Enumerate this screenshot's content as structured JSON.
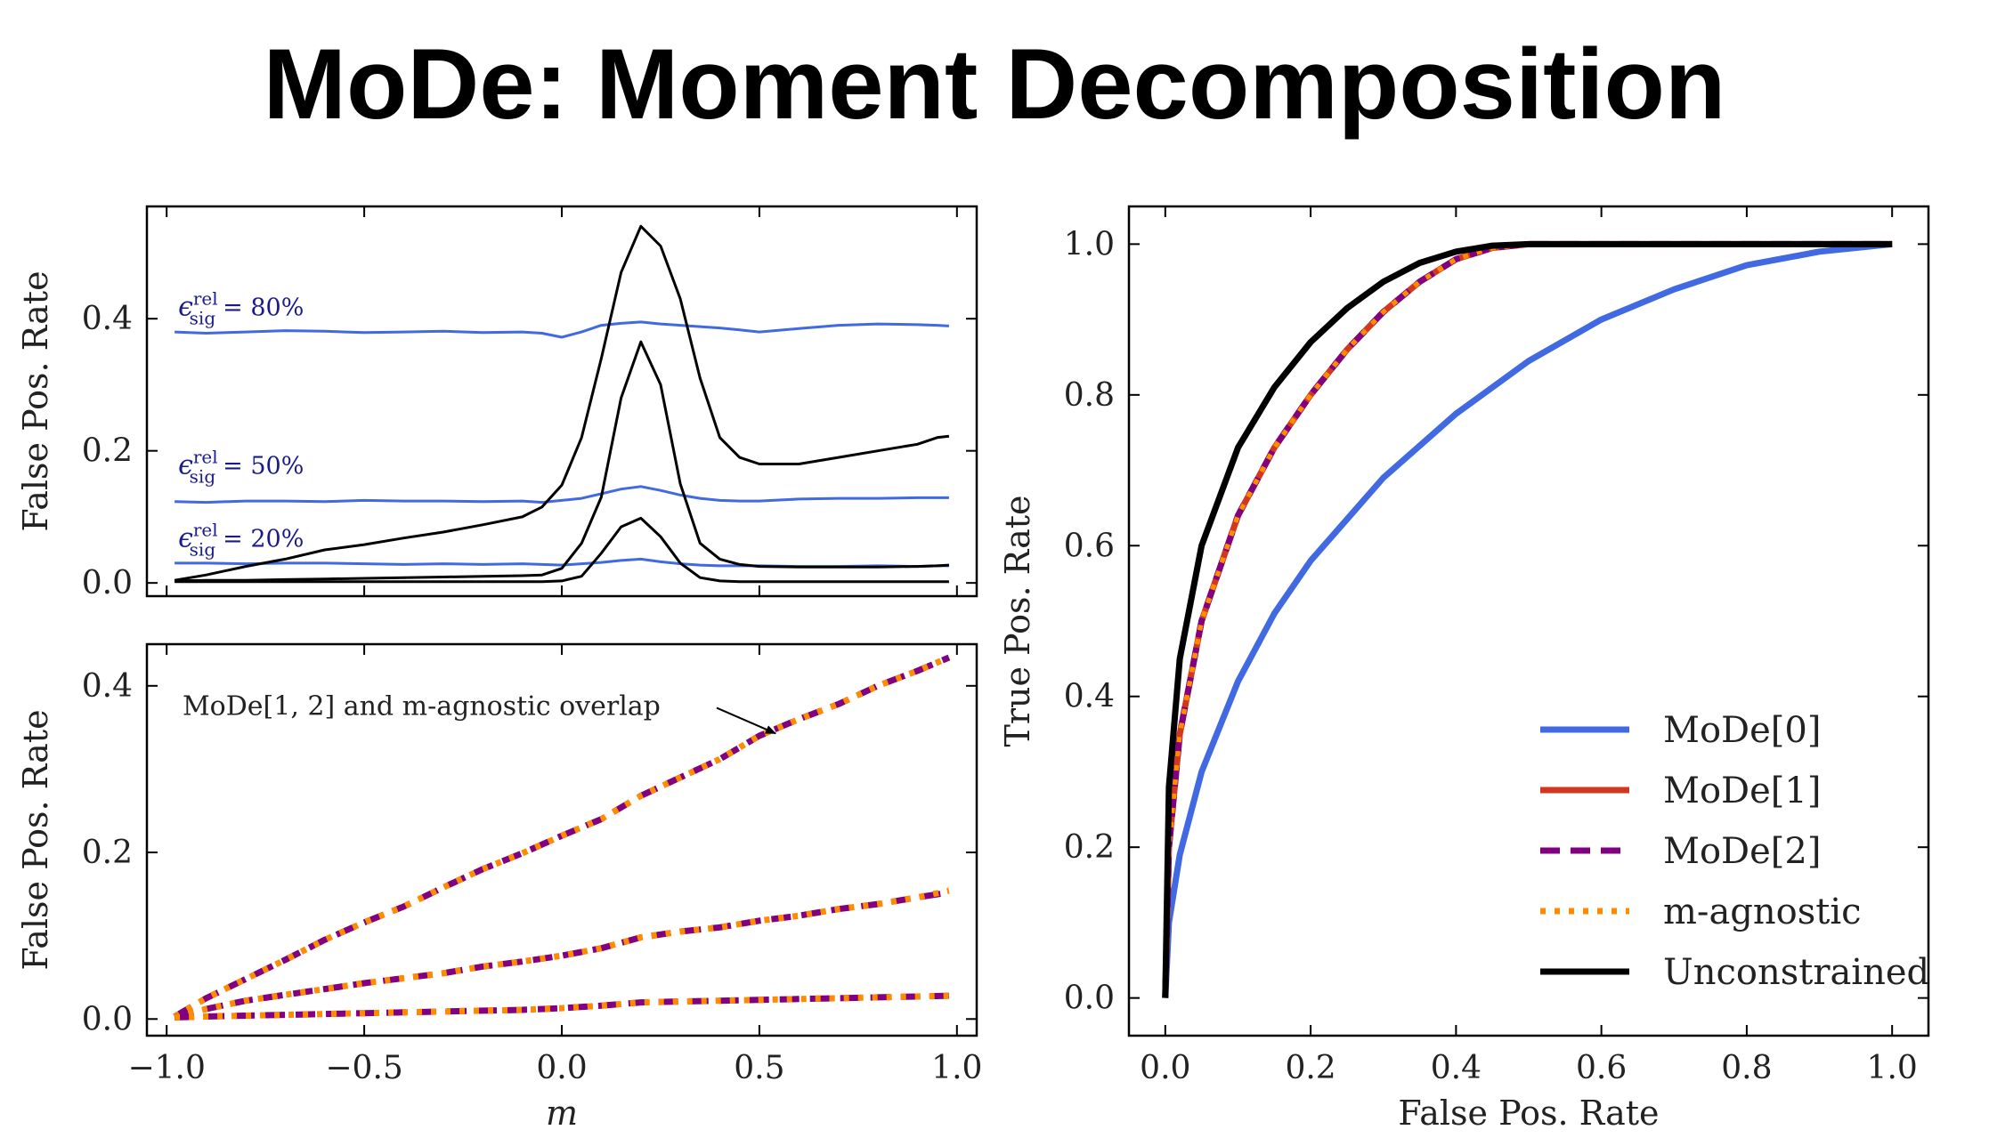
{
  "title": "MoDe: Moment Decomposition",
  "chart_data": [
    {
      "type": "line",
      "ylabel": "False Pos. Rate",
      "xlim": [
        -1.05,
        1.05
      ],
      "ylim": [
        -0.02,
        0.57
      ],
      "xticks": [
        -1.0,
        -0.5,
        0.0,
        0.5,
        1.0
      ],
      "yticks": [
        0.0,
        0.2,
        0.4
      ],
      "yticklabels": [
        "0.0",
        "0.2",
        "0.4"
      ],
      "annotations": [
        {
          "text": "ϵ",
          "sub": "sig",
          "sup": "rel",
          "eq": "= 80%",
          "x": -0.98,
          "y": 0.405
        },
        {
          "text": "ϵ",
          "sub": "sig",
          "sup": "rel",
          "eq": "= 50%",
          "x": -0.98,
          "y": 0.165
        },
        {
          "text": "ϵ",
          "sub": "sig",
          "sup": "rel",
          "eq": "= 20%",
          "x": -0.98,
          "y": 0.055
        }
      ],
      "x": [
        -0.98,
        -0.9,
        -0.8,
        -0.7,
        -0.6,
        -0.5,
        -0.4,
        -0.3,
        -0.2,
        -0.1,
        -0.05,
        0.0,
        0.05,
        0.1,
        0.15,
        0.2,
        0.25,
        0.3,
        0.35,
        0.4,
        0.45,
        0.5,
        0.6,
        0.7,
        0.8,
        0.9,
        0.95,
        0.98
      ],
      "series": [
        {
          "color": "#4169e1",
          "values": [
            0.38,
            0.378,
            0.38,
            0.382,
            0.381,
            0.379,
            0.38,
            0.381,
            0.379,
            0.38,
            0.378,
            0.372,
            0.38,
            0.39,
            0.393,
            0.395,
            0.392,
            0.39,
            0.388,
            0.386,
            0.383,
            0.38,
            0.385,
            0.39,
            0.392,
            0.391,
            0.39,
            0.389
          ]
        },
        {
          "color": "#4169e1",
          "values": [
            0.123,
            0.122,
            0.124,
            0.124,
            0.123,
            0.125,
            0.124,
            0.124,
            0.123,
            0.124,
            0.122,
            0.125,
            0.128,
            0.135,
            0.142,
            0.146,
            0.14,
            0.133,
            0.128,
            0.125,
            0.124,
            0.124,
            0.127,
            0.128,
            0.128,
            0.129,
            0.129,
            0.129
          ]
        },
        {
          "color": "#4169e1",
          "values": [
            0.03,
            0.03,
            0.029,
            0.03,
            0.03,
            0.029,
            0.028,
            0.029,
            0.028,
            0.029,
            0.028,
            0.027,
            0.029,
            0.031,
            0.034,
            0.036,
            0.032,
            0.029,
            0.027,
            0.026,
            0.026,
            0.026,
            0.025,
            0.025,
            0.026,
            0.025,
            0.026,
            0.026
          ]
        },
        {
          "color": "#000000",
          "values": [
            0.004,
            0.012,
            0.025,
            0.036,
            0.05,
            0.058,
            0.068,
            0.077,
            0.088,
            0.1,
            0.115,
            0.148,
            0.22,
            0.34,
            0.47,
            0.54,
            0.51,
            0.43,
            0.31,
            0.22,
            0.19,
            0.18,
            0.18,
            0.19,
            0.2,
            0.21,
            0.22,
            0.222
          ]
        },
        {
          "color": "#000000",
          "values": [
            0.003,
            0.004,
            0.004,
            0.005,
            0.006,
            0.007,
            0.008,
            0.009,
            0.01,
            0.011,
            0.012,
            0.022,
            0.06,
            0.13,
            0.28,
            0.365,
            0.3,
            0.15,
            0.06,
            0.036,
            0.028,
            0.025,
            0.024,
            0.024,
            0.024,
            0.025,
            0.026,
            0.027
          ]
        },
        {
          "color": "#000000",
          "values": [
            0.002,
            0.002,
            0.002,
            0.002,
            0.002,
            0.002,
            0.002,
            0.002,
            0.002,
            0.002,
            0.002,
            0.003,
            0.01,
            0.045,
            0.085,
            0.098,
            0.07,
            0.03,
            0.008,
            0.003,
            0.002,
            0.002,
            0.002,
            0.002,
            0.002,
            0.002,
            0.002,
            0.002
          ]
        }
      ]
    },
    {
      "type": "line",
      "xlabel": "m",
      "ylabel": "False Pos. Rate",
      "xlim": [
        -1.05,
        1.05
      ],
      "ylim": [
        -0.02,
        0.45
      ],
      "xticks": [
        -1.0,
        -0.5,
        0.0,
        0.5,
        1.0
      ],
      "xticklabels": [
        "−1.0",
        "−0.5",
        "0.0",
        "0.5",
        "1.0"
      ],
      "yticks": [
        0.0,
        0.2,
        0.4
      ],
      "yticklabels": [
        "0.0",
        "0.2",
        "0.4"
      ],
      "note": "MoDe[1, 2] and m-agnostic overlap",
      "note_point": {
        "x": 0.55,
        "y": 0.345
      },
      "x": [
        -0.98,
        -0.9,
        -0.8,
        -0.7,
        -0.6,
        -0.5,
        -0.4,
        -0.3,
        -0.2,
        -0.1,
        0.0,
        0.1,
        0.2,
        0.3,
        0.4,
        0.5,
        0.6,
        0.7,
        0.8,
        0.9,
        0.98
      ],
      "series": [
        {
          "color": "#800080",
          "dash": "dashed",
          "values": [
            0.003,
            0.025,
            0.048,
            0.071,
            0.095,
            0.116,
            0.135,
            0.158,
            0.18,
            0.199,
            0.22,
            0.24,
            0.268,
            0.29,
            0.312,
            0.34,
            0.36,
            0.378,
            0.4,
            0.418,
            0.434
          ]
        },
        {
          "color": "#ff8c00",
          "dash": "dotted",
          "values": [
            0.003,
            0.025,
            0.048,
            0.071,
            0.095,
            0.116,
            0.135,
            0.158,
            0.18,
            0.199,
            0.22,
            0.24,
            0.268,
            0.29,
            0.312,
            0.34,
            0.36,
            0.378,
            0.4,
            0.418,
            0.434
          ]
        },
        {
          "color": "#800080",
          "dash": "dashed",
          "values": [
            0.002,
            0.012,
            0.022,
            0.029,
            0.036,
            0.043,
            0.049,
            0.055,
            0.063,
            0.069,
            0.076,
            0.085,
            0.098,
            0.105,
            0.11,
            0.118,
            0.124,
            0.132,
            0.138,
            0.146,
            0.152
          ]
        },
        {
          "color": "#ff8c00",
          "dash": "dotted",
          "values": [
            0.002,
            0.012,
            0.022,
            0.029,
            0.036,
            0.043,
            0.049,
            0.055,
            0.063,
            0.069,
            0.076,
            0.085,
            0.098,
            0.105,
            0.11,
            0.118,
            0.124,
            0.132,
            0.138,
            0.146,
            0.154
          ]
        },
        {
          "color": "#800080",
          "dash": "dashed",
          "values": [
            0.002,
            0.003,
            0.004,
            0.005,
            0.006,
            0.007,
            0.008,
            0.009,
            0.01,
            0.011,
            0.013,
            0.016,
            0.02,
            0.021,
            0.022,
            0.023,
            0.024,
            0.025,
            0.026,
            0.027,
            0.028
          ]
        },
        {
          "color": "#ff8c00",
          "dash": "dotted",
          "values": [
            0.002,
            0.003,
            0.004,
            0.005,
            0.006,
            0.007,
            0.008,
            0.009,
            0.01,
            0.011,
            0.013,
            0.016,
            0.02,
            0.021,
            0.022,
            0.023,
            0.024,
            0.025,
            0.026,
            0.027,
            0.028
          ]
        }
      ]
    },
    {
      "type": "line",
      "xlabel": "False Pos. Rate",
      "ylabel": "True Pos. Rate",
      "xlim": [
        -0.05,
        1.05
      ],
      "ylim": [
        -0.05,
        1.05
      ],
      "xticks": [
        0.0,
        0.2,
        0.4,
        0.6,
        0.8,
        1.0
      ],
      "xticklabels": [
        "0.0",
        "0.2",
        "0.4",
        "0.6",
        "0.8",
        "1.0"
      ],
      "yticks": [
        0.0,
        0.2,
        0.4,
        0.6,
        0.8,
        1.0
      ],
      "yticklabels": [
        "0.0",
        "0.2",
        "0.4",
        "0.6",
        "0.8",
        "1.0"
      ],
      "legend_position": "lower-right",
      "series": [
        {
          "name": "MoDe[0]",
          "color": "#4169e1",
          "dash": "solid",
          "x": [
            0,
            0.005,
            0.02,
            0.05,
            0.1,
            0.15,
            0.2,
            0.3,
            0.4,
            0.5,
            0.6,
            0.7,
            0.8,
            0.9,
            1.0
          ],
          "y": [
            0,
            0.1,
            0.19,
            0.3,
            0.42,
            0.51,
            0.58,
            0.69,
            0.775,
            0.845,
            0.9,
            0.94,
            0.972,
            0.99,
            1.0
          ]
        },
        {
          "name": "MoDe[1]",
          "color": "#d2381f",
          "dash": "solid",
          "x": [
            0,
            0.005,
            0.02,
            0.05,
            0.1,
            0.15,
            0.2,
            0.25,
            0.3,
            0.35,
            0.4,
            0.45,
            0.5,
            1.0
          ],
          "y": [
            0,
            0.2,
            0.35,
            0.5,
            0.64,
            0.73,
            0.8,
            0.86,
            0.91,
            0.95,
            0.98,
            0.995,
            1.0,
            1.0
          ]
        },
        {
          "name": "MoDe[2]",
          "color": "#800080",
          "dash": "dashed",
          "x": [
            0,
            0.005,
            0.02,
            0.05,
            0.1,
            0.15,
            0.2,
            0.25,
            0.3,
            0.35,
            0.4,
            0.45,
            0.5,
            1.0
          ],
          "y": [
            0,
            0.2,
            0.35,
            0.5,
            0.64,
            0.73,
            0.8,
            0.86,
            0.91,
            0.95,
            0.98,
            0.995,
            1.0,
            1.0
          ]
        },
        {
          "name": "m-agnostic",
          "color": "#ff8c00",
          "dash": "dotted",
          "x": [
            0,
            0.005,
            0.02,
            0.05,
            0.1,
            0.15,
            0.2,
            0.25,
            0.3,
            0.35,
            0.4,
            0.45,
            0.5,
            1.0
          ],
          "y": [
            0,
            0.2,
            0.35,
            0.5,
            0.64,
            0.73,
            0.8,
            0.86,
            0.91,
            0.95,
            0.98,
            0.995,
            1.0,
            1.0
          ]
        },
        {
          "name": "Unconstrained",
          "color": "#000000",
          "dash": "solid",
          "x": [
            0,
            0.005,
            0.02,
            0.05,
            0.1,
            0.15,
            0.2,
            0.25,
            0.3,
            0.35,
            0.4,
            0.45,
            0.5,
            1.0
          ],
          "y": [
            0,
            0.28,
            0.45,
            0.6,
            0.73,
            0.81,
            0.87,
            0.915,
            0.95,
            0.975,
            0.99,
            0.998,
            1.0,
            1.0
          ]
        }
      ]
    }
  ]
}
